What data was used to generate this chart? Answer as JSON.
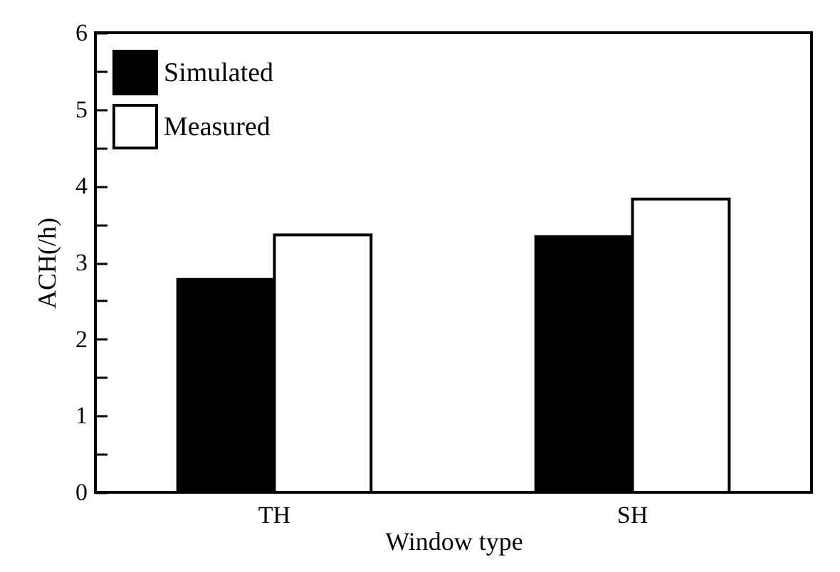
{
  "chart_data": {
    "type": "bar",
    "xlabel": "Window type",
    "ylabel": "ACH(/h)",
    "categories": [
      "TH",
      "SH"
    ],
    "series": [
      {
        "name": "Simulated",
        "color": "#000000",
        "values": [
          2.78,
          3.34
        ]
      },
      {
        "name": "Measured",
        "color": "#ffffff",
        "values": [
          3.36,
          3.83
        ]
      }
    ],
    "ylim": [
      0,
      6
    ],
    "yticks": [
      0,
      {
        "value": 0.5,
        "label": null
      },
      1,
      {
        "value": 1.5,
        "label": null
      },
      2,
      {
        "value": 2.5,
        "label": null
      },
      3,
      {
        "value": 3.5,
        "label": null
      },
      4,
      {
        "value": 4.5,
        "label": null
      },
      5,
      {
        "value": 5.5,
        "label": null
      },
      6
    ],
    "legend": "top left",
    "grid": false
  }
}
